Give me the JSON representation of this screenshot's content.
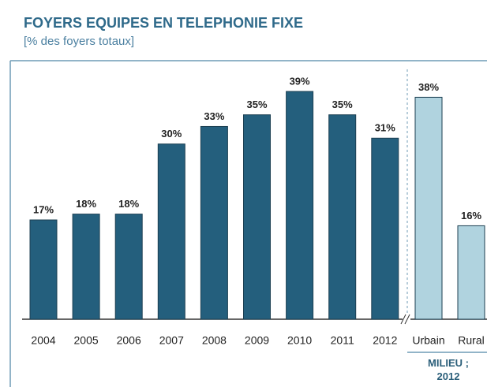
{
  "chart_data": {
    "type": "bar",
    "title": "FOYERS EQUIPES EN TELEPHONIE FIXE",
    "subtitle": "[% des foyers totaux]",
    "categories": [
      "2004",
      "2005",
      "2006",
      "2007",
      "2008",
      "2009",
      "2010",
      "2011",
      "2012",
      "Urbain",
      "Rural"
    ],
    "values": [
      17,
      18,
      18,
      30,
      33,
      35,
      39,
      35,
      31,
      38,
      16
    ],
    "value_labels": [
      "17%",
      "18%",
      "18%",
      "30%",
      "33%",
      "35%",
      "39%",
      "35%",
      "31%",
      "38%",
      "16%"
    ],
    "colors": [
      "#245f7d",
      "#245f7d",
      "#245f7d",
      "#245f7d",
      "#245f7d",
      "#245f7d",
      "#245f7d",
      "#245f7d",
      "#245f7d",
      "#b0d3df",
      "#b0d3df"
    ],
    "group_label": "MILIEU ; 2012"
  }
}
